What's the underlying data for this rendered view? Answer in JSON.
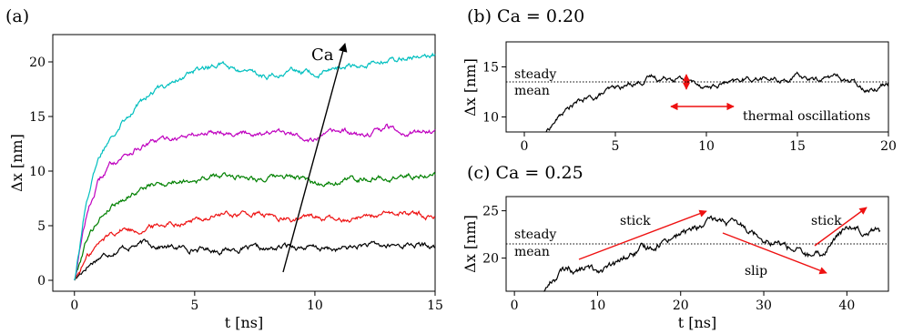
{
  "chart_data": [
    {
      "panel": "(a)",
      "type": "line",
      "xlabel": "t [ns]",
      "ylabel": "Δx [nm]",
      "xlim": [
        -0.9,
        15
      ],
      "ylim": [
        -1,
        22.5
      ],
      "xticks": [
        0,
        5,
        10,
        15
      ],
      "yticks": [
        0,
        5,
        10,
        15,
        20
      ],
      "arrow_label": "Ca",
      "series": [
        {
          "color": "#000000",
          "x": [
            0,
            0.5,
            1,
            1.5,
            2,
            2.5,
            3,
            4,
            5,
            6,
            7,
            8,
            9,
            10,
            11,
            12,
            13,
            14,
            15
          ],
          "values": [
            0,
            1.3,
            2.1,
            2.6,
            3.0,
            3.2,
            3.4,
            3.0,
            2.9,
            2.8,
            2.9,
            2.7,
            3.2,
            2.9,
            2.8,
            3.2,
            3.1,
            3.3,
            3.0
          ]
        },
        {
          "color": "#ee1111",
          "x": [
            0,
            0.5,
            1,
            1.5,
            2,
            2.5,
            3,
            4,
            5,
            6,
            7,
            8,
            9,
            10,
            11,
            12,
            13,
            14,
            15
          ],
          "values": [
            0,
            2.0,
            3.3,
            4.3,
            4.8,
            4.6,
            4.8,
            5.3,
            5.5,
            6.0,
            6.1,
            5.9,
            5.5,
            5.9,
            5.4,
            6.0,
            5.9,
            6.2,
            5.8
          ]
        },
        {
          "color": "#008000",
          "x": [
            0,
            0.5,
            1,
            1.5,
            2,
            2.5,
            3,
            4,
            5,
            6,
            7,
            8,
            9,
            10,
            11,
            12,
            13,
            14,
            15
          ],
          "values": [
            0,
            3.8,
            5.6,
            6.8,
            7.5,
            8.1,
            8.6,
            9.0,
            9.3,
            9.5,
            9.6,
            9.3,
            9.5,
            8.8,
            9.2,
            9.4,
            9.3,
            9.6,
            9.7
          ]
        },
        {
          "color": "#bf00bf",
          "x": [
            0,
            0.5,
            1,
            1.5,
            2,
            2.5,
            3,
            4,
            5,
            6,
            7,
            8,
            9,
            10,
            11,
            12,
            13,
            14,
            15
          ],
          "values": [
            0,
            6.0,
            9.0,
            10.6,
            11.4,
            12.0,
            12.4,
            13.0,
            13.3,
            13.7,
            13.5,
            13.6,
            13.3,
            13.0,
            13.6,
            13.2,
            14.0,
            13.5,
            13.8
          ]
        },
        {
          "color": "#00bfbf",
          "x": [
            0,
            0.5,
            1,
            1.5,
            2,
            2.5,
            3,
            4,
            5,
            6,
            7,
            8,
            9,
            10,
            11,
            12,
            13,
            14,
            15
          ],
          "values": [
            0,
            7.5,
            11.0,
            13.2,
            14.8,
            15.8,
            16.8,
            18.2,
            19.2,
            19.8,
            19.0,
            18.7,
            19.2,
            18.8,
            19.5,
            19.8,
            20.2,
            20.4,
            20.7
          ]
        }
      ]
    },
    {
      "panel": "(b) Ca = 0.20",
      "type": "line",
      "xlabel": "",
      "ylabel": "Δx [nm]",
      "xlim": [
        -1,
        20
      ],
      "ylim": [
        8.5,
        17.5
      ],
      "xticks": [
        0,
        5,
        10,
        15,
        20
      ],
      "yticks": [
        10,
        15
      ],
      "steady_mean": 13.5,
      "annotations": [
        "steady",
        "mean",
        "thermal oscillations"
      ],
      "series": [
        {
          "color": "#000000",
          "x": [
            1.2,
            1.6,
            2,
            2.5,
            3,
            3.5,
            4,
            4.5,
            5,
            5.5,
            6,
            6.5,
            7,
            7.5,
            8,
            8.5,
            9,
            9.5,
            10,
            10.5,
            11,
            11.5,
            12,
            13,
            14,
            15,
            16,
            17,
            18,
            18.5,
            19,
            19.5,
            20
          ],
          "values": [
            8.5,
            9.4,
            10.2,
            11.0,
            11.5,
            11.8,
            12.0,
            12.5,
            12.8,
            13.0,
            13.4,
            13.6,
            14.0,
            13.8,
            14.1,
            13.9,
            13.6,
            13.4,
            13.1,
            13.0,
            13.4,
            13.3,
            13.7,
            13.9,
            13.6,
            14.0,
            13.7,
            14.1,
            13.5,
            13.0,
            12.9,
            13.1,
            13.5
          ]
        }
      ]
    },
    {
      "panel": "(c) Ca = 0.25",
      "type": "line",
      "xlabel": "t [ns]",
      "ylabel": "Δx [nm]",
      "xlim": [
        -1,
        45
      ],
      "ylim": [
        16.5,
        26.5
      ],
      "xticks": [
        0,
        10,
        20,
        30,
        40
      ],
      "yticks": [
        20,
        25
      ],
      "steady_mean": 21.5,
      "annotations": [
        "steady",
        "mean",
        "stick",
        "slip",
        "stick"
      ],
      "series": [
        {
          "color": "#000000",
          "x": [
            3.5,
            4.5,
            5.5,
            6.5,
            7.5,
            8.5,
            9.5,
            10.5,
            12,
            13,
            14,
            15,
            16,
            17,
            18,
            19,
            20,
            21,
            22,
            23,
            24,
            25,
            26,
            27,
            28,
            29,
            30,
            31,
            32,
            33,
            34,
            35,
            36,
            37,
            38,
            39,
            40,
            41,
            42,
            43,
            44
          ],
          "values": [
            16.5,
            17.6,
            18.4,
            19.0,
            18.6,
            19.0,
            18.7,
            18.9,
            19.1,
            19.8,
            20.3,
            20.7,
            21.0,
            21.4,
            21.9,
            22.4,
            22.6,
            22.9,
            23.2,
            23.5,
            23.8,
            24.0,
            23.7,
            23.3,
            23.2,
            22.7,
            22.3,
            21.9,
            21.5,
            21.2,
            20.9,
            20.3,
            20.0,
            20.2,
            21.5,
            22.4,
            23.1,
            23.4,
            23.0,
            23.3,
            22.9
          ]
        }
      ]
    }
  ],
  "panels": {
    "a": {
      "label": "(a)"
    },
    "b": {
      "label": "(b) Ca = 0.20"
    },
    "c": {
      "label": "(c) Ca = 0.25"
    }
  },
  "colors": {
    "arrow_black": "#000000",
    "annotation_red": "#ee1111"
  }
}
